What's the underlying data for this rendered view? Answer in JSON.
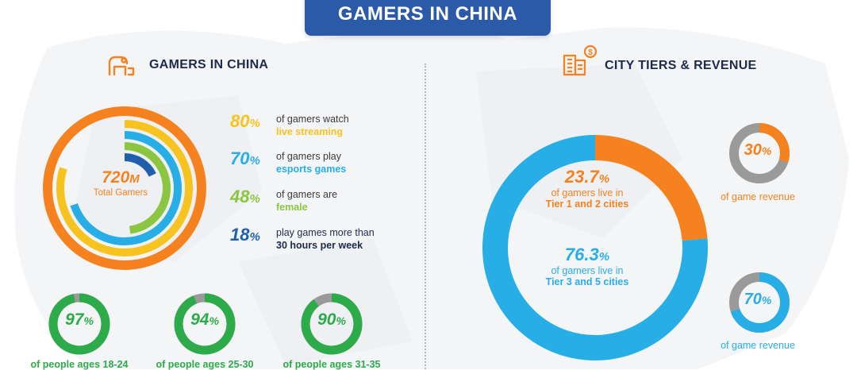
{
  "title": "GAMERS IN CHINA",
  "left_section": {
    "heading": "GAMERS IN CHINA",
    "icon": "gamer-chair-icon"
  },
  "right_section": {
    "heading": "CITY TIERS & REVENUE",
    "icon": "city-buildings-revenue-icon"
  },
  "colors": {
    "orange": "#f5821f",
    "yellow": "#f7c31e",
    "sky": "#28aee6",
    "green": "#8cc640",
    "navy": "#1f5fac",
    "green_dark": "#2dab4a",
    "grey": "#9a9a9a",
    "title_bg": "#2b5aa8"
  },
  "total": {
    "value": "720",
    "unit": "M",
    "label": "Total Gamers"
  },
  "stats": [
    {
      "pct": "80",
      "line1": "of gamers watch",
      "line2": "live streaming",
      "color": "#f7c31e"
    },
    {
      "pct": "70",
      "line1": "of gamers play",
      "line2": "esports games",
      "color": "#28aee6"
    },
    {
      "pct": "48",
      "line1": "of gamers are",
      "line2": "female",
      "color": "#8cc640"
    },
    {
      "pct": "18",
      "line1": "play games more than",
      "line2": "30 hours per week",
      "color": "#1f5fac"
    }
  ],
  "ages": [
    {
      "pct": "97",
      "label": "of people ages 18-24"
    },
    {
      "pct": "94",
      "label": "of people ages 25-30"
    },
    {
      "pct": "90",
      "label": "of people ages 31-35"
    }
  ],
  "tiers": [
    {
      "pct": "23.7",
      "line1": "of gamers live in",
      "line2": "Tier 1 and 2 cities"
    },
    {
      "pct": "76.3",
      "line1": "of gamers live in",
      "line2": "Tier 3 and 5 cities"
    }
  ],
  "revenue": [
    {
      "pct": "30",
      "label": "of game revenue"
    },
    {
      "pct": "70",
      "label": "of game revenue"
    }
  ],
  "chart_data": [
    {
      "type": "radial-bar",
      "center_label": "720M Total Gamers",
      "series": [
        {
          "value": 80,
          "color": "#f7c31e"
        },
        {
          "value": 70,
          "color": "#28aee6"
        },
        {
          "value": 48,
          "color": "#8cc640"
        },
        {
          "value": 18,
          "color": "#1f5fac"
        }
      ],
      "outer_ring_value": 100,
      "outer_ring_color": "#f5821f"
    },
    {
      "type": "pie",
      "categories": [
        "Tier 1 and 2 cities",
        "Tier 3 and 5 cities"
      ],
      "values": [
        23.7,
        76.3
      ],
      "colors": [
        "#f5821f",
        "#28aee6"
      ],
      "style": "donut"
    },
    {
      "type": "pie",
      "values": [
        30,
        70
      ],
      "colors": [
        "#f5821f",
        "#9a9a9a"
      ],
      "style": "donut",
      "center_label": "30%"
    },
    {
      "type": "pie",
      "values": [
        70,
        30
      ],
      "colors": [
        "#28aee6",
        "#9a9a9a"
      ],
      "style": "donut",
      "center_label": "70%"
    },
    {
      "type": "pie",
      "categories": [
        "of people ages 18-24",
        "of people ages 25-30",
        "of people ages 31-35"
      ],
      "values": [
        97,
        94,
        90
      ],
      "colors": [
        "#2dab4a",
        "#9a9a9a"
      ],
      "style": "donut-set"
    }
  ]
}
